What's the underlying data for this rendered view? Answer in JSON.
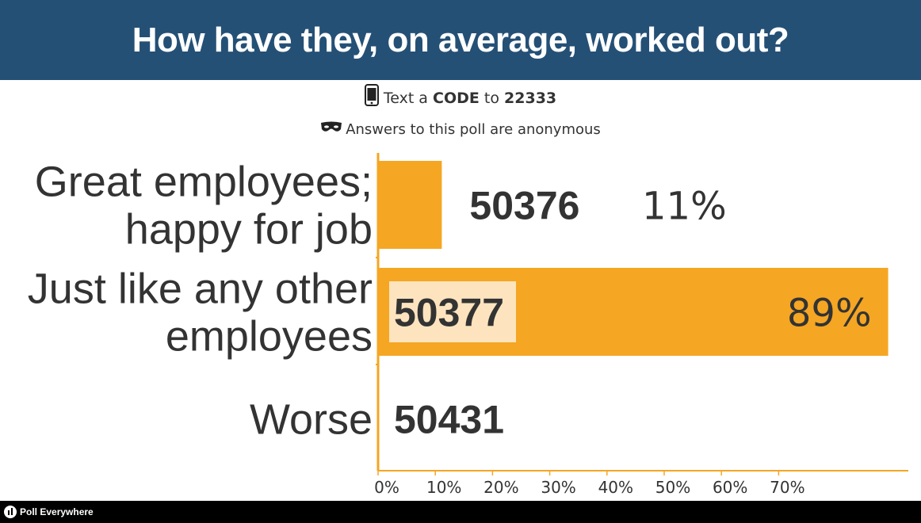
{
  "header": {
    "title": "How have they, on average, worked out?"
  },
  "instructions": {
    "text_prefix": "Text a",
    "code_word": "CODE",
    "to_word": "to",
    "number": "22333",
    "anonymous": "Answers to this poll are anonymous"
  },
  "footer": {
    "brand": "Poll Everywhere"
  },
  "colors": {
    "header_bg": "#255076",
    "bar": "#f5a623",
    "code_box": "#fde4be",
    "axis": "#f5a623",
    "footer_bg": "#000000"
  },
  "chart_data": {
    "type": "bar",
    "orientation": "horizontal",
    "categories": [
      [
        "Great employees;",
        "happy for job"
      ],
      [
        "Just like any other",
        "employees"
      ],
      [
        "Worse"
      ]
    ],
    "codes": [
      "50376",
      "50377",
      "50431"
    ],
    "values": [
      11,
      89,
      0
    ],
    "value_labels": [
      "11%",
      "89%",
      ""
    ],
    "x_ticks": [
      "0%",
      "10%",
      "20%",
      "30%",
      "40%",
      "50%",
      "60%",
      "70%"
    ],
    "xlim": [
      0,
      91
    ],
    "highlighted_index": 1
  }
}
